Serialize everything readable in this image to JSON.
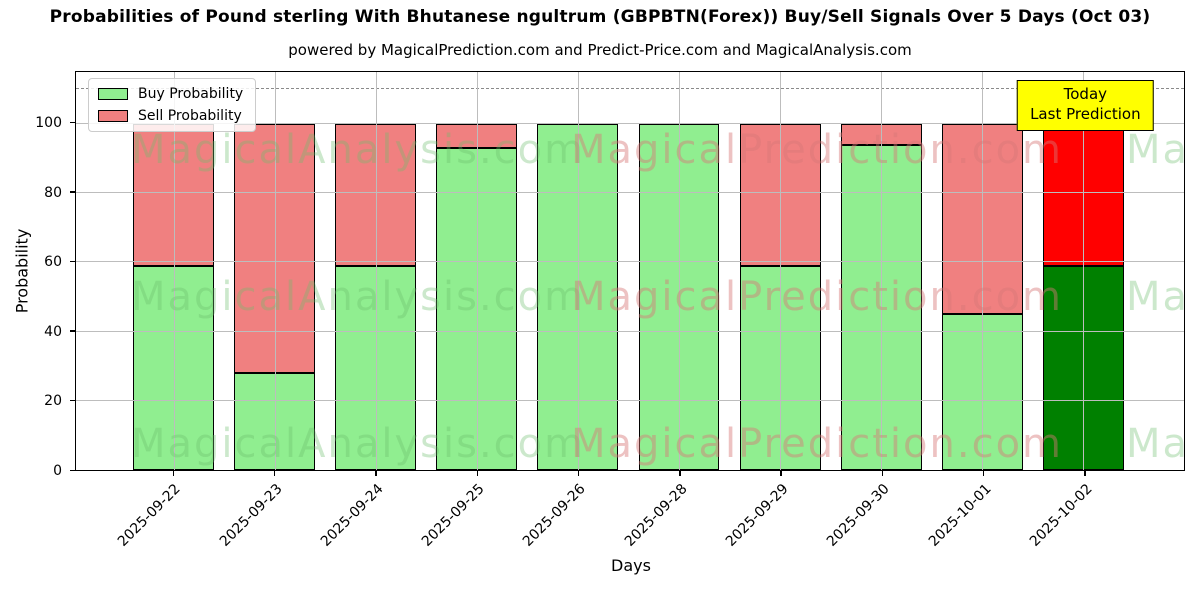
{
  "chart_data": {
    "type": "bar",
    "stacked": true,
    "title": "Probabilities of Pound sterling With Bhutanese ngultrum (GBPBTN(Forex)) Buy/Sell Signals Over 5 Days (Oct 03)",
    "subtitle": "powered by MagicalPrediction.com and Predict-Price.com and MagicalAnalysis.com",
    "xlabel": "Days",
    "ylabel": "Probability",
    "categories": [
      "2025-09-22",
      "2025-09-23",
      "2025-09-24",
      "2025-09-25",
      "2025-09-26",
      "2025-09-28",
      "2025-09-29",
      "2025-09-30",
      "2025-10-01",
      "2025-10-02"
    ],
    "series": [
      {
        "name": "Buy Probability",
        "values": [
          59,
          28,
          59,
          93,
          100,
          100,
          59,
          94,
          45,
          59
        ]
      },
      {
        "name": "Sell Probability",
        "values": [
          41,
          72,
          41,
          7,
          0,
          0,
          41,
          6,
          55,
          41
        ]
      }
    ],
    "yticks": [
      0,
      20,
      40,
      60,
      80,
      100
    ],
    "ylim": [
      0,
      115
    ],
    "dashed_line_y": 110,
    "grid": true,
    "legend_position": "upper left",
    "annotation": {
      "line1": "Today",
      "line2": "Last Prediction"
    },
    "watermarks": {
      "left_text": "MagicalAnalysis.com",
      "right_text": "MagicalPrediction.com"
    },
    "colors": {
      "buy": "#90EE90",
      "sell": "#F08080",
      "buy_last": "#008000",
      "sell_last": "#FF0000",
      "bar_edge": "#000000",
      "annotation_bg": "#FFFF00",
      "grid": "#bdbdbd",
      "dashed_line": "#8a8a8a",
      "watermark_green": "rgba(110,190,110,0.35)",
      "watermark_red": "rgba(215,120,120,0.45)"
    }
  }
}
